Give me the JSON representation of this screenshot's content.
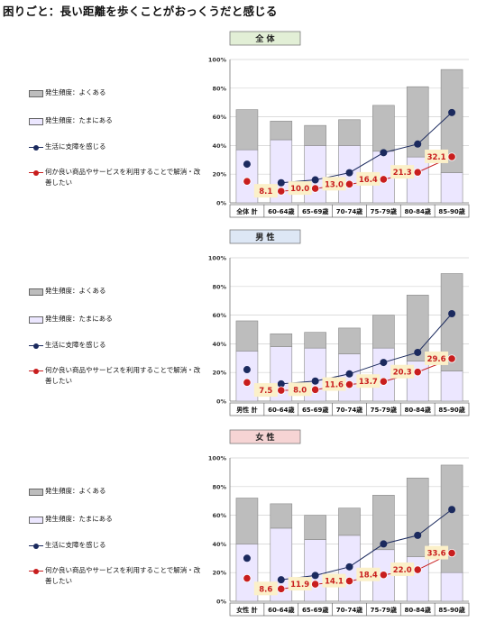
{
  "title": "困りごと：長い距離を歩くことがおっくうだと感じる",
  "legend_items": [
    {
      "label": "発生頻度：よくある",
      "kind": "box",
      "color": "#bdbdbd"
    },
    {
      "label": "発生頻度：たまにある",
      "kind": "box",
      "color": "#ece7ff"
    },
    {
      "label": "生活に支障を感じる",
      "kind": "line",
      "color": "#1b2a5e"
    },
    {
      "label": "何か良い商品やサービスを利用することで解消・改善したい",
      "kind": "line",
      "color": "#c81e1e"
    }
  ],
  "colors": {
    "often": "#bdbdbd",
    "sometimes": "#ece7ff",
    "navy": "#1b2a5e",
    "red": "#c81e1e",
    "label_bg": "#fbf0c9",
    "grid": "#d0d0d0",
    "header_all": "#e2efd6",
    "header_male": "#dde7f5",
    "header_female": "#f6d4d4"
  },
  "chart_data": [
    {
      "type": "bar",
      "title": "全 体",
      "categories": [
        "全体 計",
        "60-64歳",
        "65-69歳",
        "70-74歳",
        "75-79歳",
        "80-84歳",
        "85-90歳"
      ],
      "ylim": [
        0,
        100
      ],
      "yticks": [
        "0%",
        "20%",
        "40%",
        "60%",
        "80%",
        "100%"
      ],
      "series": [
        {
          "name": "発生頻度：たまにある",
          "values": [
            37,
            44,
            40,
            40,
            36,
            32,
            21
          ]
        },
        {
          "name": "発生頻度：よくある",
          "values": [
            28,
            13,
            14,
            18,
            32,
            49,
            72
          ]
        },
        {
          "name": "生活に支障を感じる",
          "values": [
            27,
            14,
            16,
            21,
            35,
            41,
            63
          ]
        },
        {
          "name": "何か良い商品やサービスを利用することで解消・改善したい",
          "values": [
            15,
            8.1,
            10.0,
            13.0,
            16.4,
            21.3,
            32.1
          ]
        }
      ],
      "data_labels": [
        "8.1",
        "10.0",
        "13.0",
        "16.4",
        "21.3",
        "32.1"
      ]
    },
    {
      "type": "bar",
      "title": "男 性",
      "categories": [
        "男性 計",
        "60-64歳",
        "65-69歳",
        "70-74歳",
        "75-79歳",
        "80-84歳",
        "85-90歳"
      ],
      "ylim": [
        0,
        100
      ],
      "yticks": [
        "0%",
        "20%",
        "40%",
        "60%",
        "80%",
        "100%"
      ],
      "series": [
        {
          "name": "発生頻度：たまにある",
          "values": [
            35,
            38,
            37,
            33,
            37,
            28,
            21
          ]
        },
        {
          "name": "発生頻度：よくある",
          "values": [
            21,
            9,
            11,
            18,
            23,
            46,
            68
          ]
        },
        {
          "name": "生活に支障を感じる",
          "values": [
            22,
            12,
            14,
            19,
            27,
            34,
            61
          ]
        },
        {
          "name": "何か良い商品やサービスを利用することで解消・改善したい",
          "values": [
            13,
            7.5,
            8.0,
            11.6,
            13.7,
            20.3,
            29.6
          ]
        }
      ],
      "data_labels": [
        "7.5",
        "8.0",
        "11.6",
        "13.7",
        "20.3",
        "29.6"
      ]
    },
    {
      "type": "bar",
      "title": "女 性",
      "categories": [
        "女性 計",
        "60-64歳",
        "65-69歳",
        "70-74歳",
        "75-79歳",
        "80-84歳",
        "85-90歳"
      ],
      "ylim": [
        0,
        100
      ],
      "yticks": [
        "0%",
        "20%",
        "40%",
        "60%",
        "80%",
        "100%"
      ],
      "series": [
        {
          "name": "発生頻度：たまにある",
          "values": [
            40,
            51,
            43,
            46,
            36,
            31,
            20
          ]
        },
        {
          "name": "発生頻度：よくある",
          "values": [
            32,
            17,
            17,
            19,
            38,
            55,
            75
          ]
        },
        {
          "name": "生活に支障を感じる",
          "values": [
            30,
            15,
            18,
            24,
            40,
            46,
            64
          ]
        },
        {
          "name": "何か良い商品やサービスを利用することで解消・改善したい",
          "values": [
            16,
            8.6,
            11.9,
            14.1,
            18.4,
            22.0,
            33.6
          ]
        }
      ],
      "data_labels": [
        "8.6",
        "11.9",
        "14.1",
        "18.4",
        "22.0",
        "33.6"
      ]
    }
  ]
}
